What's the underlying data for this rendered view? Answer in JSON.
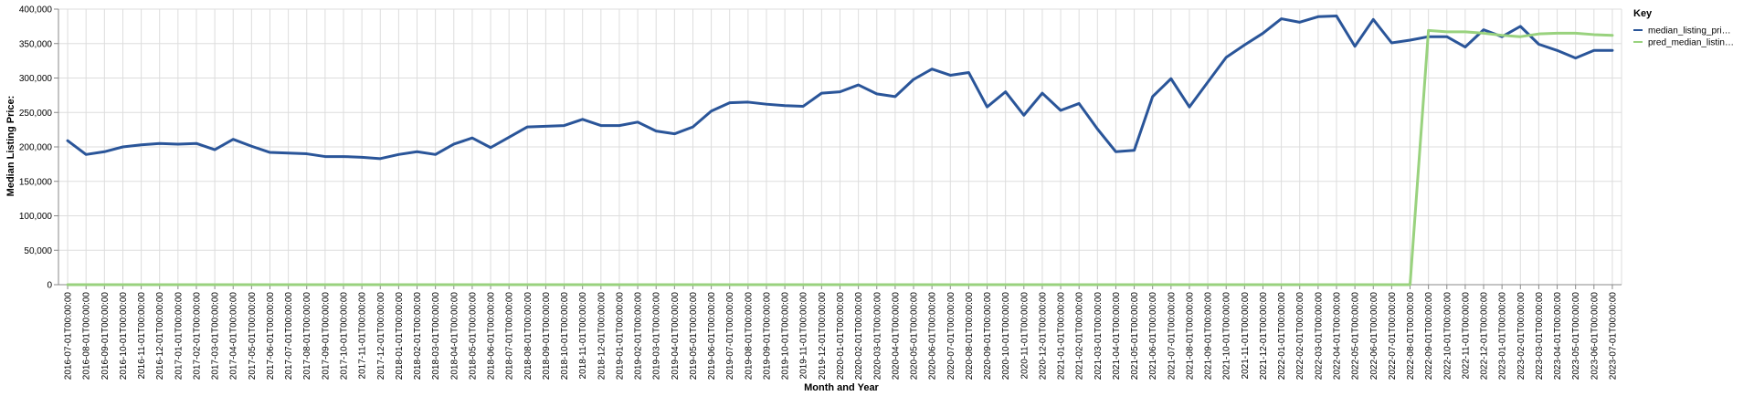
{
  "chart_data": {
    "type": "line",
    "xlabel": "Month and Year",
    "ylabel": "Median Listing Price:",
    "ylim": [
      0,
      400000
    ],
    "yticks": [
      "0",
      "50,000",
      "100,000",
      "150,000",
      "200,000",
      "250,000",
      "300,000",
      "350,000",
      "400,000"
    ],
    "grid": true,
    "legend": {
      "title": "Key",
      "placement": "top-right"
    },
    "x": [
      "2016-07-01T00:00:00",
      "2016-08-01T00:00:00",
      "2016-09-01T00:00:00",
      "2016-10-01T00:00:00",
      "2016-11-01T00:00:00",
      "2016-12-01T00:00:00",
      "2017-01-01T00:00:00",
      "2017-02-01T00:00:00",
      "2017-03-01T00:00:00",
      "2017-04-01T00:00:00",
      "2017-05-01T00:00:00",
      "2017-06-01T00:00:00",
      "2017-07-01T00:00:00",
      "2017-08-01T00:00:00",
      "2017-09-01T00:00:00",
      "2017-10-01T00:00:00",
      "2017-11-01T00:00:00",
      "2017-12-01T00:00:00",
      "2018-01-01T00:00:00",
      "2018-02-01T00:00:00",
      "2018-03-01T00:00:00",
      "2018-04-01T00:00:00",
      "2018-05-01T00:00:00",
      "2018-06-01T00:00:00",
      "2018-07-01T00:00:00",
      "2018-08-01T00:00:00",
      "2018-09-01T00:00:00",
      "2018-10-01T00:00:00",
      "2018-11-01T00:00:00",
      "2018-12-01T00:00:00",
      "2019-01-01T00:00:00",
      "2019-02-01T00:00:00",
      "2019-03-01T00:00:00",
      "2019-04-01T00:00:00",
      "2019-05-01T00:00:00",
      "2019-06-01T00:00:00",
      "2019-07-01T00:00:00",
      "2019-08-01T00:00:00",
      "2019-09-01T00:00:00",
      "2019-10-01T00:00:00",
      "2019-11-01T00:00:00",
      "2019-12-01T00:00:00",
      "2020-01-01T00:00:00",
      "2020-02-01T00:00:00",
      "2020-03-01T00:00:00",
      "2020-04-01T00:00:00",
      "2020-05-01T00:00:00",
      "2020-06-01T00:00:00",
      "2020-07-01T00:00:00",
      "2020-08-01T00:00:00",
      "2020-09-01T00:00:00",
      "2020-10-01T00:00:00",
      "2020-11-01T00:00:00",
      "2020-12-01T00:00:00",
      "2021-01-01T00:00:00",
      "2021-02-01T00:00:00",
      "2021-03-01T00:00:00",
      "2021-04-01T00:00:00",
      "2021-05-01T00:00:00",
      "2021-06-01T00:00:00",
      "2021-07-01T00:00:00",
      "2021-08-01T00:00:00",
      "2021-09-01T00:00:00",
      "2021-10-01T00:00:00",
      "2021-11-01T00:00:00",
      "2021-12-01T00:00:00",
      "2022-01-01T00:00:00",
      "2022-02-01T00:00:00",
      "2022-03-01T00:00:00",
      "2022-04-01T00:00:00",
      "2022-05-01T00:00:00",
      "2022-06-01T00:00:00",
      "2022-07-01T00:00:00",
      "2022-08-01T00:00:00",
      "2022-09-01T00:00:00",
      "2022-10-01T00:00:00",
      "2022-11-01T00:00:00",
      "2022-12-01T00:00:00",
      "2023-01-01T00:00:00",
      "2023-02-01T00:00:00",
      "2023-03-01T00:00:00",
      "2023-04-01T00:00:00",
      "2023-05-01T00:00:00",
      "2023-06-01T00:00:00",
      "2023-07-01T00:00:00"
    ],
    "series": [
      {
        "name": "median_listing_pri…",
        "color": "#2a5599",
        "values": [
          209000,
          189000,
          193000,
          200000,
          203000,
          205000,
          204000,
          205000,
          196000,
          211000,
          201000,
          192000,
          191000,
          190000,
          186000,
          186000,
          185000,
          183000,
          189000,
          193000,
          189000,
          204000,
          213000,
          199000,
          214000,
          229000,
          230000,
          231000,
          240000,
          231000,
          231000,
          236000,
          223000,
          219000,
          229000,
          252000,
          264000,
          265000,
          262000,
          260000,
          259000,
          278000,
          280000,
          290000,
          277000,
          273000,
          298000,
          313000,
          304000,
          308000,
          258000,
          280000,
          246000,
          278000,
          253000,
          263000,
          226000,
          193000,
          195000,
          273000,
          299000,
          258000,
          294000,
          330000,
          348000,
          365000,
          386000,
          381000,
          389000,
          390000,
          346000,
          385000,
          351000,
          355000,
          360000,
          360000,
          345000,
          370000,
          360000,
          375000,
          349000,
          340000,
          329000,
          340000,
          340000
        ]
      },
      {
        "name": "pred_median_listin…",
        "color": "#99d27e",
        "values": [
          0,
          0,
          0,
          0,
          0,
          0,
          0,
          0,
          0,
          0,
          0,
          0,
          0,
          0,
          0,
          0,
          0,
          0,
          0,
          0,
          0,
          0,
          0,
          0,
          0,
          0,
          0,
          0,
          0,
          0,
          0,
          0,
          0,
          0,
          0,
          0,
          0,
          0,
          0,
          0,
          0,
          0,
          0,
          0,
          0,
          0,
          0,
          0,
          0,
          0,
          0,
          0,
          0,
          0,
          0,
          0,
          0,
          0,
          0,
          0,
          0,
          0,
          0,
          0,
          0,
          0,
          0,
          0,
          0,
          0,
          0,
          0,
          0,
          0,
          369000,
          367000,
          367000,
          365000,
          362000,
          360000,
          364000,
          365000,
          365000,
          363000,
          362000
        ]
      }
    ]
  }
}
